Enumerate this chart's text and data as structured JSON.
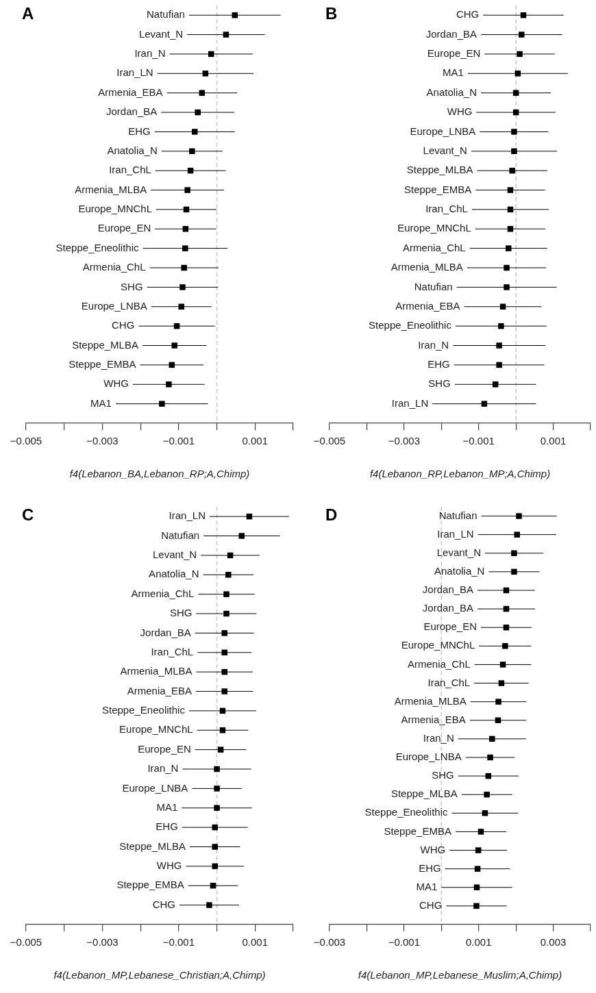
{
  "chart_data": [
    {
      "type": "scatter",
      "title": "A",
      "xlabel": "f4(Lebanon_BA,Lebanon_RP;A,Chimp)",
      "orientation": "horizontal",
      "marker": "square",
      "categories": [
        "Natufian",
        "Levant_N",
        "Iran_N",
        "Iran_LN",
        "Armenia_EBA",
        "Jordan_BA",
        "EHG",
        "Anatolia_N",
        "Iran_ChL",
        "Armenia_MLBA",
        "Europe_MNChL",
        "Europe_EN",
        "Steppe_Eneolithic",
        "Armenia_ChL",
        "SHG",
        "Europe_LNBA",
        "CHG",
        "Steppe_MLBA",
        "Steppe_EMBA",
        "WHG",
        "MA1"
      ],
      "series": [
        {
          "color": "#000000",
          "values": [
            0.00047,
            0.00024,
            -0.00015,
            -0.0003,
            -0.00039,
            -0.0005,
            -0.00058,
            -0.00065,
            -0.00069,
            -0.00077,
            -0.0008,
            -0.00082,
            -0.00083,
            -0.00086,
            -0.0009,
            -0.00093,
            -0.00105,
            -0.00111,
            -0.00118,
            -0.00126,
            -0.00144
          ],
          "errors": [
            0.0012,
            0.00102,
            0.00109,
            0.00126,
            0.00092,
            0.00096,
            0.00105,
            0.0008,
            0.00092,
            0.00096,
            0.00079,
            0.0008,
            0.00111,
            0.0009,
            0.00093,
            0.00079,
            0.001,
            0.00084,
            0.00083,
            0.00094,
            0.00121
          ]
        }
      ],
      "xlim": [
        -0.005,
        0.002
      ],
      "xticks": [
        -0.005,
        {
          "value": -0.004,
          "label": null
        },
        -0.003,
        {
          "value": -0.002,
          "label": null
        },
        -0.001,
        {
          "value": 0,
          "label": null
        },
        0.001,
        {
          "value": 0.002,
          "label": null
        }
      ],
      "ref_lines": [
        {
          "axis": "x",
          "value": 0,
          "color": "#c8c8c8",
          "line_style": "dashed"
        }
      ]
    },
    {
      "type": "scatter",
      "title": "B",
      "xlabel": "f4(Lebanon_RP,Lebanon_MP;A,Chimp)",
      "orientation": "horizontal",
      "marker": "square",
      "categories": [
        "CHG",
        "Jordan_BA",
        "Europe_EN",
        "MA1",
        "Anatolia_N",
        "WHG",
        "Europe_LNBA",
        "Levant_N",
        "Steppe_MLBA",
        "Steppe_EMBA",
        "Iran_ChL",
        "Europe_MNChL",
        "Armenia_ChL",
        "Armenia_MLBA",
        "Natufian",
        "Armenia_EBA",
        "Steppe_Eneolithic",
        "Iran_N",
        "EHG",
        "SHG",
        "Iran_LN"
      ],
      "series": [
        {
          "color": "#000000",
          "values": [
            0.0002,
            0.00015,
            0.0001,
            5e-05,
            0,
            0,
            -5e-05,
            -5e-05,
            -0.0001,
            -0.00015,
            -0.00015,
            -0.00015,
            -0.0002,
            -0.00025,
            -0.00025,
            -0.00035,
            -0.0004,
            -0.00045,
            -0.00045,
            -0.00055,
            -0.00085
          ],
          "errors": [
            0.00108,
            0.00109,
            0.00094,
            0.00134,
            0.00094,
            0.00106,
            0.00092,
            0.00115,
            0.00094,
            0.00093,
            0.00103,
            0.00094,
            0.00104,
            0.00106,
            0.00134,
            0.00104,
            0.00122,
            0.00124,
            0.00121,
            0.00109,
            0.00139
          ]
        }
      ],
      "xlim": [
        -0.005,
        0.002
      ],
      "xticks": [
        -0.005,
        {
          "value": -0.004,
          "label": null
        },
        -0.003,
        {
          "value": -0.002,
          "label": null
        },
        -0.001,
        {
          "value": 0,
          "label": null
        },
        0.001,
        {
          "value": 0.002,
          "label": null
        }
      ],
      "ref_lines": [
        {
          "axis": "x",
          "value": 0,
          "color": "#c8c8c8",
          "line_style": "dashed"
        }
      ]
    },
    {
      "type": "scatter",
      "title": "C",
      "xlabel": "f4(Lebanon_MP,Lebanese_Christian;A,Chimp)",
      "orientation": "horizontal",
      "marker": "square",
      "categories": [
        "Iran_LN",
        "Natufian",
        "Levant_N",
        "Anatolia_N",
        "Armenia_ChL",
        "SHG",
        "Jordan_BA",
        "Iran_ChL",
        "Armenia_MLBA",
        "Armenia_EBA",
        "Steppe_Eneolithic",
        "Europe_MNChL",
        "Europe_EN",
        "Iran_N",
        "Europe_LNBA",
        "MA1",
        "EHG",
        "Steppe_MLBA",
        "WHG",
        "Steppe_EMBA",
        "CHG"
      ],
      "series": [
        {
          "color": "#000000",
          "values": [
            0.00085,
            0.00065,
            0.00035,
            0.0003,
            0.00025,
            0.00025,
            0.0002,
            0.0002,
            0.0002,
            0.0002,
            0.00015,
            0.00015,
            0.0001,
            0,
            0,
            0,
            -5e-05,
            -5e-05,
            -5e-05,
            -0.0001,
            -0.0002
          ],
          "errors": [
            0.00104,
            0.001,
            0.00077,
            0.00066,
            0.00074,
            0.00079,
            0.00077,
            0.00071,
            0.00074,
            0.00075,
            0.00088,
            0.00067,
            0.00067,
            0.0009,
            0.00065,
            0.00092,
            0.00086,
            0.00066,
            0.00076,
            0.00065,
            0.00078
          ]
        }
      ],
      "xlim": [
        -0.005,
        0.002
      ],
      "xticks": [
        -0.005,
        {
          "value": -0.004,
          "label": null
        },
        -0.003,
        {
          "value": -0.002,
          "label": null
        },
        -0.001,
        {
          "value": 0,
          "label": null
        },
        0.001,
        {
          "value": 0.002,
          "label": null
        }
      ],
      "ref_lines": [
        {
          "axis": "x",
          "value": 0,
          "color": "#c8c8c8",
          "line_style": "dashed"
        }
      ]
    },
    {
      "type": "scatter",
      "title": "D",
      "xlabel": "f4(Lebanon_MP,Lebanese_Muslim;A,Chimp)",
      "orientation": "horizontal",
      "marker": "square",
      "categories": [
        "Natufian",
        "Iran_LN",
        "Levant_N",
        "Anatolia_N",
        "Jordan_BA",
        "Jordan_BA",
        "Europe_EN",
        "Europe_MNChL",
        "Armenia_ChL",
        "Iran_ChL",
        "Armenia_MLBA",
        "Armenia_EBA",
        "Iran_N",
        "Europe_LNBA",
        "SHG",
        "Steppe_MLBA",
        "Steppe_Eneolithic",
        "Steppe_EMBA",
        "WHG",
        "EHG",
        "MA1",
        "CHG"
      ],
      "series": [
        {
          "color": "#000000",
          "values": [
            0.00208,
            0.00203,
            0.00195,
            0.00195,
            0.00174,
            0.00174,
            0.00174,
            0.00171,
            0.00165,
            0.00161,
            0.00153,
            0.00152,
            0.00136,
            0.00131,
            0.00126,
            0.00122,
            0.00117,
            0.00106,
            0.00099,
            0.00097,
            0.00095,
            0.00094
          ],
          "errors": [
            0.00101,
            0.00105,
            0.00078,
            0.00068,
            0.00077,
            0.00077,
            0.00068,
            0.0007,
            0.00076,
            0.00073,
            0.00075,
            0.00076,
            0.00091,
            0.00066,
            0.00081,
            0.00068,
            0.00089,
            0.00068,
            0.00077,
            0.00087,
            0.00095,
            0.00081
          ]
        }
      ],
      "xlim": [
        -0.003,
        0.004
      ],
      "xticks": [
        -0.003,
        {
          "value": -0.002,
          "label": null
        },
        -0.001,
        {
          "value": 0,
          "label": null
        },
        0.001,
        {
          "value": 0.002,
          "label": null
        },
        0.003,
        {
          "value": 0.004,
          "label": null
        }
      ],
      "ref_lines": [
        {
          "axis": "x",
          "value": 0,
          "color": "#c8c8c8",
          "line_style": "dashed"
        }
      ]
    }
  ]
}
